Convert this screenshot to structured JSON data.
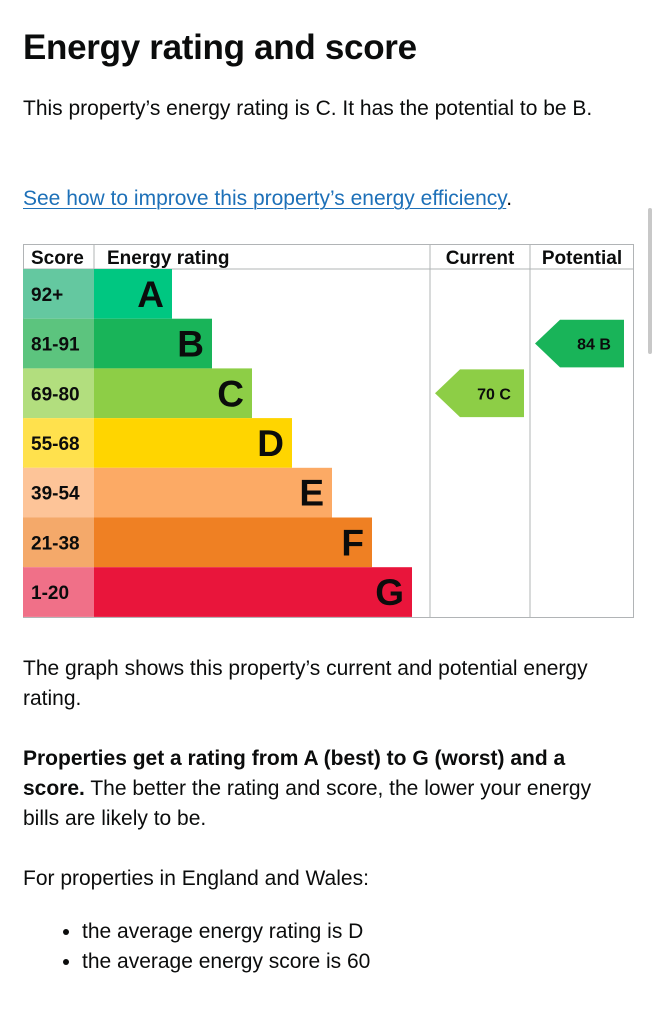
{
  "title": "Energy rating and score",
  "intro": "This property’s energy rating is C. It has the potential to be B.",
  "improve_link": "See how to improve this property’s energy efficiency",
  "improve_link_suffix": ".",
  "chart_data": {
    "type": "table",
    "headers": {
      "score": "Score",
      "rating": "Energy rating",
      "current": "Current",
      "potential": "Potential"
    },
    "bands": [
      {
        "score": "92+",
        "letter": "A",
        "color": "#00c781",
        "score_bg": "#64c8a0"
      },
      {
        "score": "81-91",
        "letter": "B",
        "color": "#19b459",
        "score_bg": "#5cc47e"
      },
      {
        "score": "69-80",
        "letter": "C",
        "color": "#8dce46",
        "score_bg": "#b2de7e"
      },
      {
        "score": "55-68",
        "letter": "D",
        "color": "#ffd500",
        "score_bg": "#ffe14d"
      },
      {
        "score": "39-54",
        "letter": "E",
        "color": "#fcaa65",
        "score_bg": "#fdc498"
      },
      {
        "score": "21-38",
        "letter": "F",
        "color": "#ef8023",
        "score_bg": "#f4a96a"
      },
      {
        "score": "1-20",
        "letter": "G",
        "color": "#e9153b",
        "score_bg": "#f07088"
      }
    ],
    "current": {
      "score": 70,
      "letter": "C",
      "label": "70 C",
      "band_index": 2
    },
    "potential": {
      "score": 84,
      "letter": "B",
      "label": "84 B",
      "band_index": 1
    }
  },
  "graph_text": "The graph shows this property’s current and potential energy rating.",
  "rating_bold": "Properties get a rating from A (best) to G (worst) and a score.",
  "rating_rest": " The better the rating and score, the lower your energy bills are likely to be.",
  "region_text": "For properties in England and Wales:",
  "averages": [
    "the average energy rating is D",
    "the average energy score is 60"
  ]
}
